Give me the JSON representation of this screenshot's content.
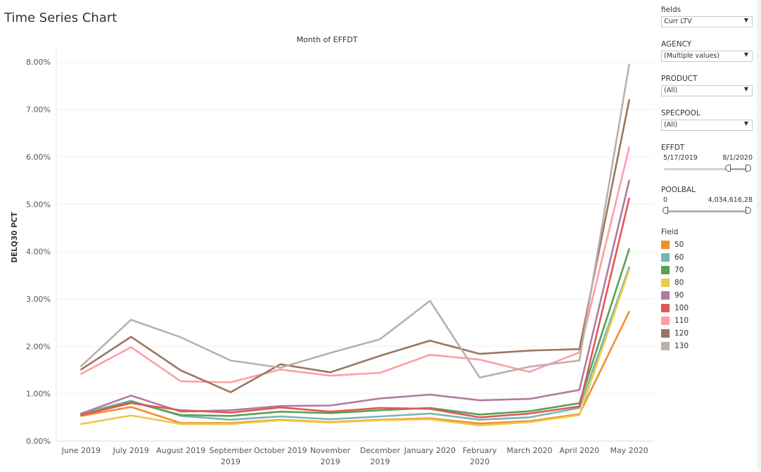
{
  "title": "Time Series Chart",
  "chart_data": {
    "type": "line",
    "title": "Month of EFFDT",
    "xlabel": "",
    "ylabel": "DELQ30 PCT",
    "ylim": [
      0,
      8.3
    ],
    "y_ticks": [
      "0.00%",
      "1.00%",
      "2.00%",
      "3.00%",
      "4.00%",
      "5.00%",
      "6.00%",
      "7.00%",
      "8.00%"
    ],
    "y_tick_values": [
      0,
      1,
      2,
      3,
      4,
      5,
      6,
      7,
      8
    ],
    "categories": [
      "June 2019",
      "July 2019",
      "August 2019",
      "September 2019",
      "October 2019",
      "November 2019",
      "December 2019",
      "January 2020",
      "February 2020",
      "March 2020",
      "April 2020",
      "May 2020"
    ],
    "category_lines": [
      [
        "June 2019"
      ],
      [
        "July 2019"
      ],
      [
        "August 2019"
      ],
      [
        "September",
        "2019"
      ],
      [
        "October 2019"
      ],
      [
        "November",
        "2019"
      ],
      [
        "December",
        "2019"
      ],
      [
        "January 2020"
      ],
      [
        "February",
        "2020"
      ],
      [
        "March 2020"
      ],
      [
        "April 2020"
      ],
      [
        "May 2020"
      ]
    ],
    "grid": true,
    "series": [
      {
        "name": "50",
        "color": "#f28e2b",
        "values": [
          0.53,
          0.72,
          0.38,
          0.38,
          0.45,
          0.4,
          0.45,
          0.48,
          0.37,
          0.42,
          0.57,
          2.73
        ]
      },
      {
        "name": "60",
        "color": "#76b7b2",
        "values": [
          0.58,
          0.85,
          0.53,
          0.45,
          0.52,
          0.46,
          0.52,
          0.58,
          0.45,
          0.5,
          0.7,
          3.67
        ]
      },
      {
        "name": "70",
        "color": "#59a14f",
        "values": [
          0.55,
          0.83,
          0.55,
          0.53,
          0.62,
          0.59,
          0.65,
          0.7,
          0.56,
          0.63,
          0.8,
          4.05
        ]
      },
      {
        "name": "80",
        "color": "#edc948",
        "values": [
          0.36,
          0.54,
          0.36,
          0.36,
          0.44,
          0.39,
          0.44,
          0.46,
          0.33,
          0.4,
          0.55,
          3.62
        ]
      },
      {
        "name": "90",
        "color": "#b07aa1",
        "values": [
          0.58,
          0.96,
          0.62,
          0.65,
          0.74,
          0.75,
          0.9,
          0.98,
          0.86,
          0.89,
          1.08,
          5.5
        ]
      },
      {
        "name": "100",
        "color": "#e15759",
        "values": [
          0.55,
          0.8,
          0.65,
          0.6,
          0.71,
          0.62,
          0.7,
          0.68,
          0.5,
          0.58,
          0.73,
          5.12
        ]
      },
      {
        "name": "110",
        "color": "#ff9da7",
        "values": [
          1.42,
          1.98,
          1.26,
          1.24,
          1.51,
          1.38,
          1.44,
          1.82,
          1.72,
          1.46,
          1.87,
          6.2
        ]
      },
      {
        "name": "120",
        "color": "#9c755f",
        "values": [
          1.51,
          2.2,
          1.49,
          1.03,
          1.62,
          1.45,
          1.8,
          2.12,
          1.84,
          1.91,
          1.94,
          7.2
        ]
      },
      {
        "name": "130",
        "color": "#bab0ac",
        "values": [
          1.58,
          2.56,
          2.19,
          1.7,
          1.55,
          1.86,
          2.15,
          2.96,
          1.34,
          1.57,
          1.7,
          7.95
        ]
      }
    ]
  },
  "filters": {
    "fields": {
      "label": "fields",
      "value": "Curr LTV"
    },
    "agency": {
      "label": "AGENCY",
      "value": "(Multiple values)"
    },
    "product": {
      "label": "PRODUCT",
      "value": "(All)"
    },
    "specpool": {
      "label": "SPECPOOL",
      "value": "(All)"
    },
    "effdt": {
      "label": "EFFDT",
      "min": "5/17/2019",
      "max": "8/1/2020"
    },
    "poolbal": {
      "label": "POOLBAL",
      "min": "0",
      "max": "4,034,616,28"
    }
  },
  "legend": {
    "title": "Field"
  }
}
